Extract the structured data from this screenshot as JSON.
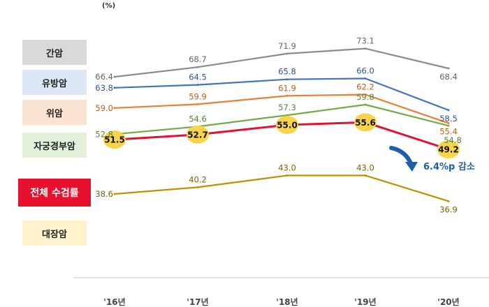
{
  "chart_data": {
    "type": "line",
    "unit": "(%)",
    "categories": [
      "'16년",
      "'17년",
      "'18년",
      "'19년",
      "'20년"
    ],
    "annotation": "6.4%p 감소",
    "ylim": [
      30,
      78
    ],
    "series": [
      {
        "name": "간암",
        "values": [
          66.4,
          68.7,
          71.9,
          73.1,
          68.4
        ],
        "color": "#8c8c8c",
        "label_color": "#666666",
        "legend_bg": "#d9d9d9"
      },
      {
        "name": "유방암",
        "values": [
          63.8,
          64.5,
          65.8,
          66.0,
          58.5
        ],
        "color": "#4472c4",
        "label_color": "#2f5597",
        "legend_bg": "#dde8f6"
      },
      {
        "name": "위암",
        "values": [
          59.0,
          59.9,
          61.9,
          62.2,
          55.4
        ],
        "color": "#ed7d31",
        "label_color": "#c55a11",
        "legend_bg": "#fbe3d4"
      },
      {
        "name": "자궁경부암",
        "values": [
          52.8,
          54.6,
          57.3,
          59.8,
          54.8
        ],
        "color": "#70ad47",
        "label_color": "#548235",
        "legend_bg": "#e2efd9"
      },
      {
        "name": "전체 수검률",
        "values": [
          51.5,
          52.7,
          55.0,
          55.6,
          49.2
        ],
        "color": "#e8112d",
        "label_color": "#111111",
        "legend_bg": "#e8112d",
        "marker": "#f7d44a"
      },
      {
        "name": "대장암",
        "values": [
          38.6,
          40.2,
          43.0,
          43.0,
          36.9
        ],
        "color": "#bf9000",
        "label_color": "#7f6000",
        "legend_bg": "#fff2cc"
      }
    ]
  }
}
